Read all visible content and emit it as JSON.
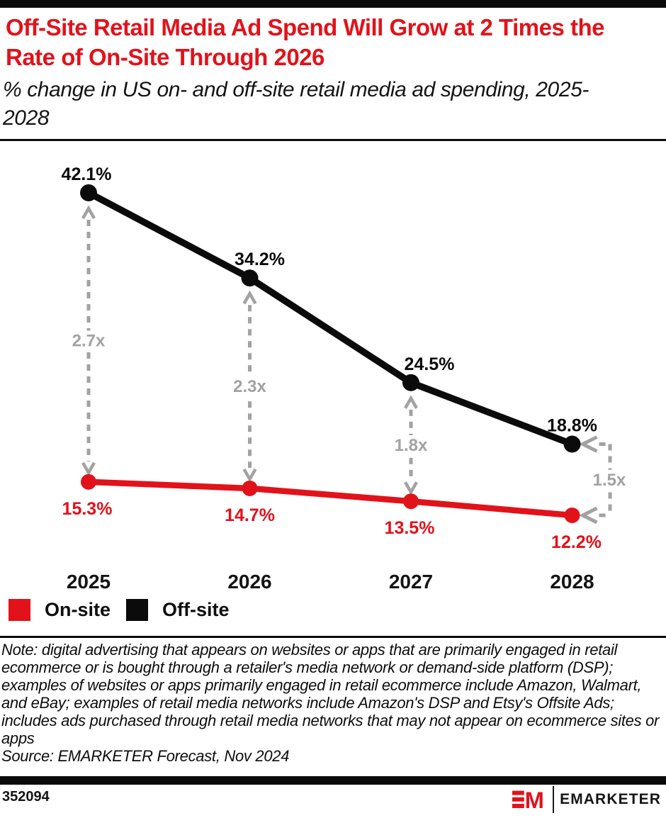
{
  "header": {
    "title": "Off-Site Retail Media Ad Spend Will Grow at 2 Times the Rate of On-Site Through 2026",
    "subtitle": "% change in US on- and off-site retail media ad spending, 2025-2028"
  },
  "chart_data": {
    "type": "line",
    "categories": [
      "2025",
      "2026",
      "2027",
      "2028"
    ],
    "series": [
      {
        "name": "On-site",
        "color": "#e2121a",
        "values": [
          15.3,
          14.7,
          13.5,
          12.2
        ],
        "labels": [
          "15.3%",
          "14.7%",
          "13.5%",
          "12.2%"
        ]
      },
      {
        "name": "Off-site",
        "color": "#0b0b0b",
        "values": [
          42.1,
          34.2,
          24.5,
          18.8
        ],
        "labels": [
          "42.1%",
          "34.2%",
          "24.5%",
          "18.8%"
        ]
      }
    ],
    "multipliers": [
      "2.7x",
      "2.3x",
      "1.8x",
      "1.5x"
    ],
    "multiplier_note": "gray dashed arrows show off-site vs on-site growth ratio per year",
    "value_axis_range": [
      12.2,
      42.1
    ],
    "grid": false,
    "axes": "none (direct-labeled points)",
    "legend_position": "bottom-left"
  },
  "legend": {
    "items": [
      {
        "label": "On-site",
        "color": "#e2121a"
      },
      {
        "label": "Off-site",
        "color": "#0b0b0b"
      }
    ]
  },
  "footnote": {
    "note": "Note: digital advertising that appears on websites or apps that are primarily engaged in retail ecommerce or is bought through a retailer's media network or demand-side platform (DSP); examples of websites or apps primarily engaged in retail ecommerce include Amazon, Walmart, and eBay; examples of retail media networks include Amazon's DSP and Etsy's Offsite Ads; includes ads purchased through retail media networks that may not appear on ecommerce sites or apps",
    "source": "Source: EMARKETER Forecast, Nov 2024"
  },
  "footer": {
    "chart_id": "352094",
    "brand": "EMARKETER"
  },
  "colors": {
    "accent_red": "#e2121a",
    "arrow_gray": "#a2a2a2",
    "black": "#0b0b0b"
  }
}
